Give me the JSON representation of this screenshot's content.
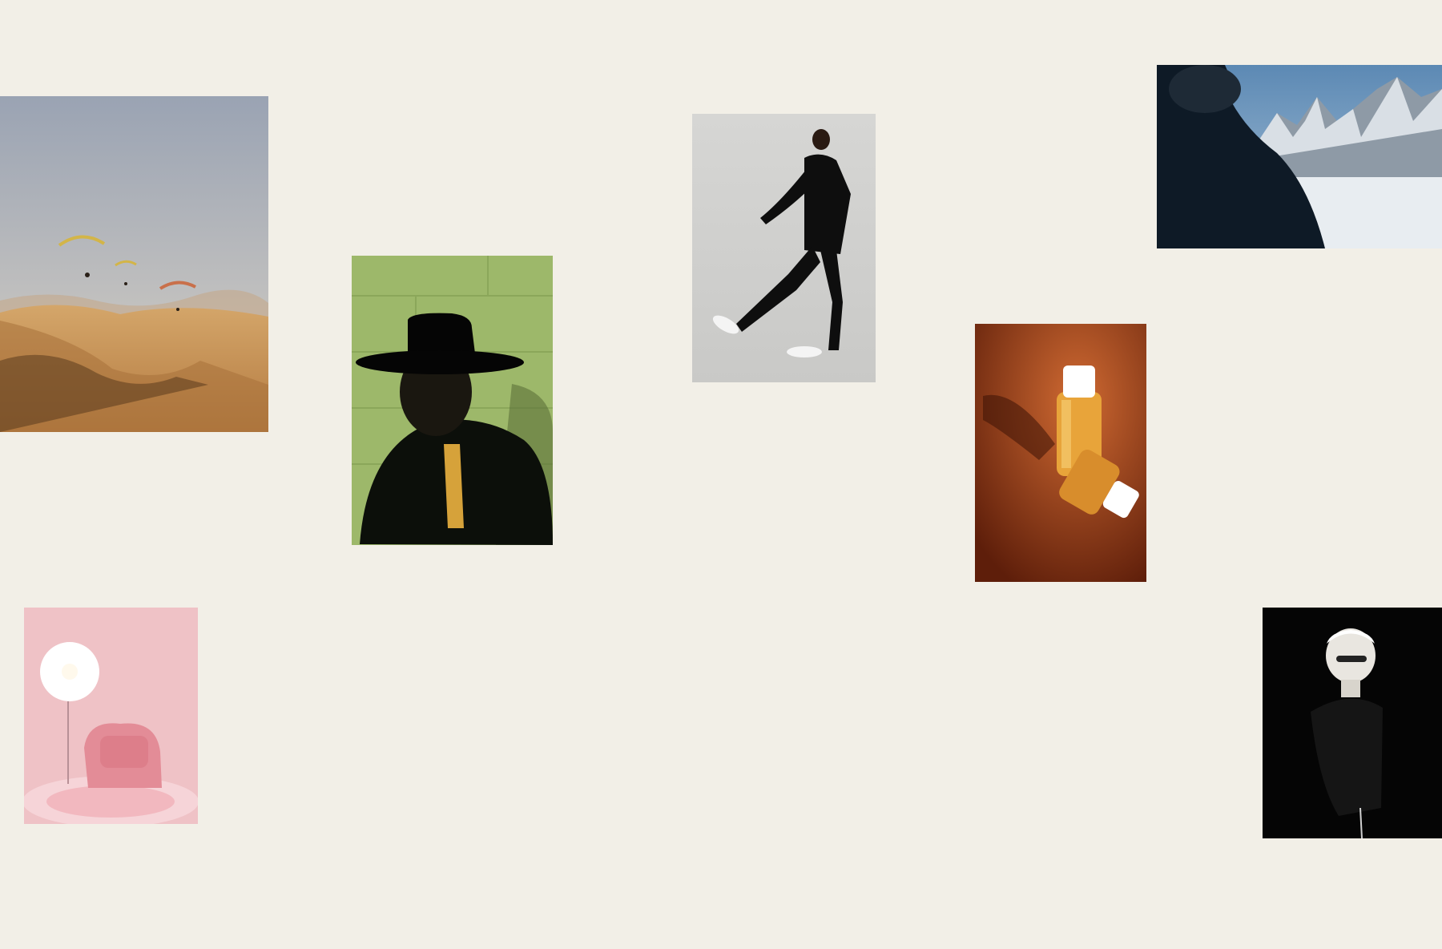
{
  "page": {
    "background": "#f2efe7"
  },
  "gallery": {
    "items": [
      {
        "subject": "desert-paragliders",
        "palette": [
          "#9aa3b3",
          "#c99a5c",
          "#5a3a1e"
        ]
      },
      {
        "subject": "man-in-black-hat",
        "palette": [
          "#9db86a",
          "#0c0f0a",
          "#d6a23a"
        ]
      },
      {
        "subject": "man-kicking-pose",
        "palette": [
          "#d6d6d4",
          "#0e0e0e",
          "#f4f4f4"
        ]
      },
      {
        "subject": "photographer-mountains",
        "palette": [
          "#5c89b4",
          "#e6ebf0",
          "#0e1a26"
        ]
      },
      {
        "subject": "perfume-bottles",
        "palette": [
          "#a84a1c",
          "#e8a43a",
          "#ffffff"
        ]
      },
      {
        "subject": "pink-fluffy-chair",
        "palette": [
          "#efc2c6",
          "#e38c97",
          "#ffffff"
        ]
      },
      {
        "subject": "statue-with-sunglasses",
        "palette": [
          "#050505",
          "#e9e6e0",
          "#151515"
        ]
      }
    ]
  }
}
